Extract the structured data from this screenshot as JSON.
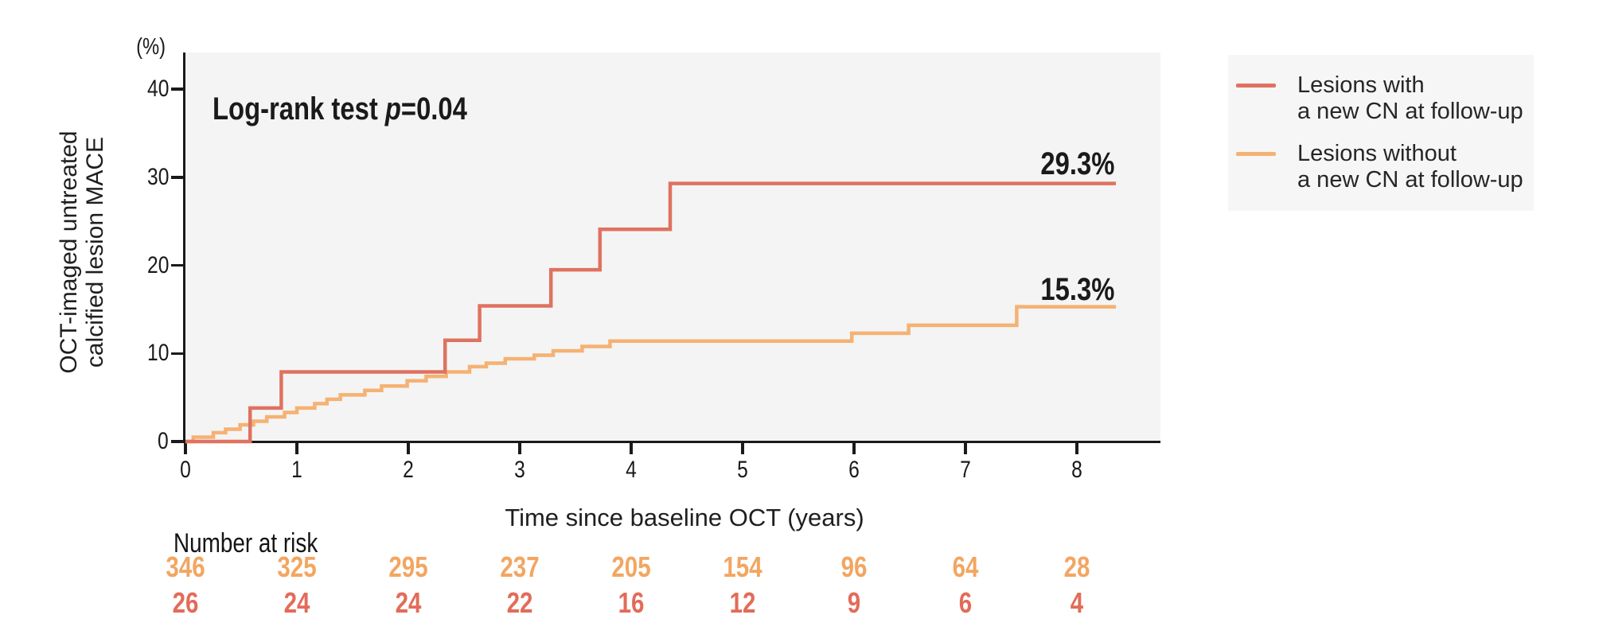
{
  "y_axis": {
    "unit_label": "(%)",
    "label_line1": "OCT-imaged untreated",
    "label_line2": "calcified lesion MACE",
    "ticks": [
      0,
      10,
      20,
      30,
      40
    ]
  },
  "x_axis": {
    "title": "Time since baseline OCT (years)",
    "ticks": [
      0,
      1,
      2,
      3,
      4,
      5,
      6,
      7,
      8
    ]
  },
  "stat_annotation": {
    "prefix": "Log-rank test ",
    "p_symbol": "p",
    "p_value": "=0.04"
  },
  "curve_end_labels": {
    "with_new_cn": "29.3%",
    "without_new_cn": "15.3%"
  },
  "legend": {
    "entries": [
      {
        "label_line1": "Lesions with",
        "label_line2": "a new CN at follow-up",
        "color": "#df7260"
      },
      {
        "label_line1": "Lesions without",
        "label_line2": "a new CN at follow-up",
        "color": "#f5b273"
      }
    ]
  },
  "at_risk": {
    "header": "Number at risk",
    "rows": [
      {
        "name": "Lesions without a new CN at follow-up",
        "color": "#f2a661",
        "values": [
          "346",
          "325",
          "295",
          "237",
          "205",
          "154",
          "96",
          "64",
          "28"
        ]
      },
      {
        "name": "Lesions with a new CN at follow-up",
        "color": "#e26c59",
        "values": [
          "26",
          "24",
          "24",
          "22",
          "16",
          "12",
          "9",
          "6",
          "4"
        ]
      }
    ]
  },
  "chart_data": {
    "type": "line",
    "subtype": "kaplan-meier-step",
    "title": "",
    "xlabel": "Time since baseline OCT (years)",
    "ylabel": "OCT-imaged untreated calcified lesion MACE (%)",
    "xlim": [
      0,
      8.75
    ],
    "ylim": [
      0,
      44
    ],
    "x_ticks": [
      0,
      1,
      2,
      3,
      4,
      5,
      6,
      7,
      8
    ],
    "y_ticks": [
      0,
      10,
      20,
      30,
      40
    ],
    "grid": false,
    "legend_position": "outside-right",
    "annotation": "Log-rank test p=0.04",
    "series": [
      {
        "name": "Lesions without a new CN at follow-up",
        "color": "#f5b273",
        "end_label": "15.3%",
        "x_end": 8.35,
        "steps": [
          [
            0,
            0
          ],
          [
            0.07,
            0.5
          ],
          [
            0.25,
            1.0
          ],
          [
            0.36,
            1.4
          ],
          [
            0.49,
            1.9
          ],
          [
            0.61,
            2.3
          ],
          [
            0.73,
            2.8
          ],
          [
            0.89,
            3.3
          ],
          [
            1.0,
            3.8
          ],
          [
            1.16,
            4.3
          ],
          [
            1.27,
            4.8
          ],
          [
            1.39,
            5.3
          ],
          [
            1.61,
            5.8
          ],
          [
            1.76,
            6.3
          ],
          [
            1.99,
            6.9
          ],
          [
            2.16,
            7.4
          ],
          [
            2.34,
            7.9
          ],
          [
            2.55,
            8.5
          ],
          [
            2.7,
            8.9
          ],
          [
            2.87,
            9.4
          ],
          [
            3.13,
            9.8
          ],
          [
            3.3,
            10.3
          ],
          [
            3.56,
            10.8
          ],
          [
            3.81,
            11.4
          ],
          [
            5.98,
            12.3
          ],
          [
            6.49,
            13.2
          ],
          [
            7.46,
            15.3
          ]
        ]
      },
      {
        "name": "Lesions with a new CN at follow-up",
        "color": "#df7260",
        "end_label": "29.3%",
        "x_end": 8.35,
        "steps": [
          [
            0,
            0
          ],
          [
            0.58,
            3.8
          ],
          [
            0.86,
            7.9
          ],
          [
            2.33,
            11.5
          ],
          [
            2.64,
            15.4
          ],
          [
            3.28,
            19.5
          ],
          [
            3.72,
            24.1
          ],
          [
            4.35,
            29.3
          ]
        ]
      }
    ],
    "number_at_risk": {
      "x": [
        0,
        1,
        2,
        3,
        4,
        5,
        6,
        7,
        8
      ],
      "lesions_without_new_CN": [
        346,
        325,
        295,
        237,
        205,
        154,
        96,
        64,
        28
      ],
      "lesions_with_new_CN": [
        26,
        24,
        24,
        22,
        16,
        12,
        9,
        6,
        4
      ]
    }
  }
}
